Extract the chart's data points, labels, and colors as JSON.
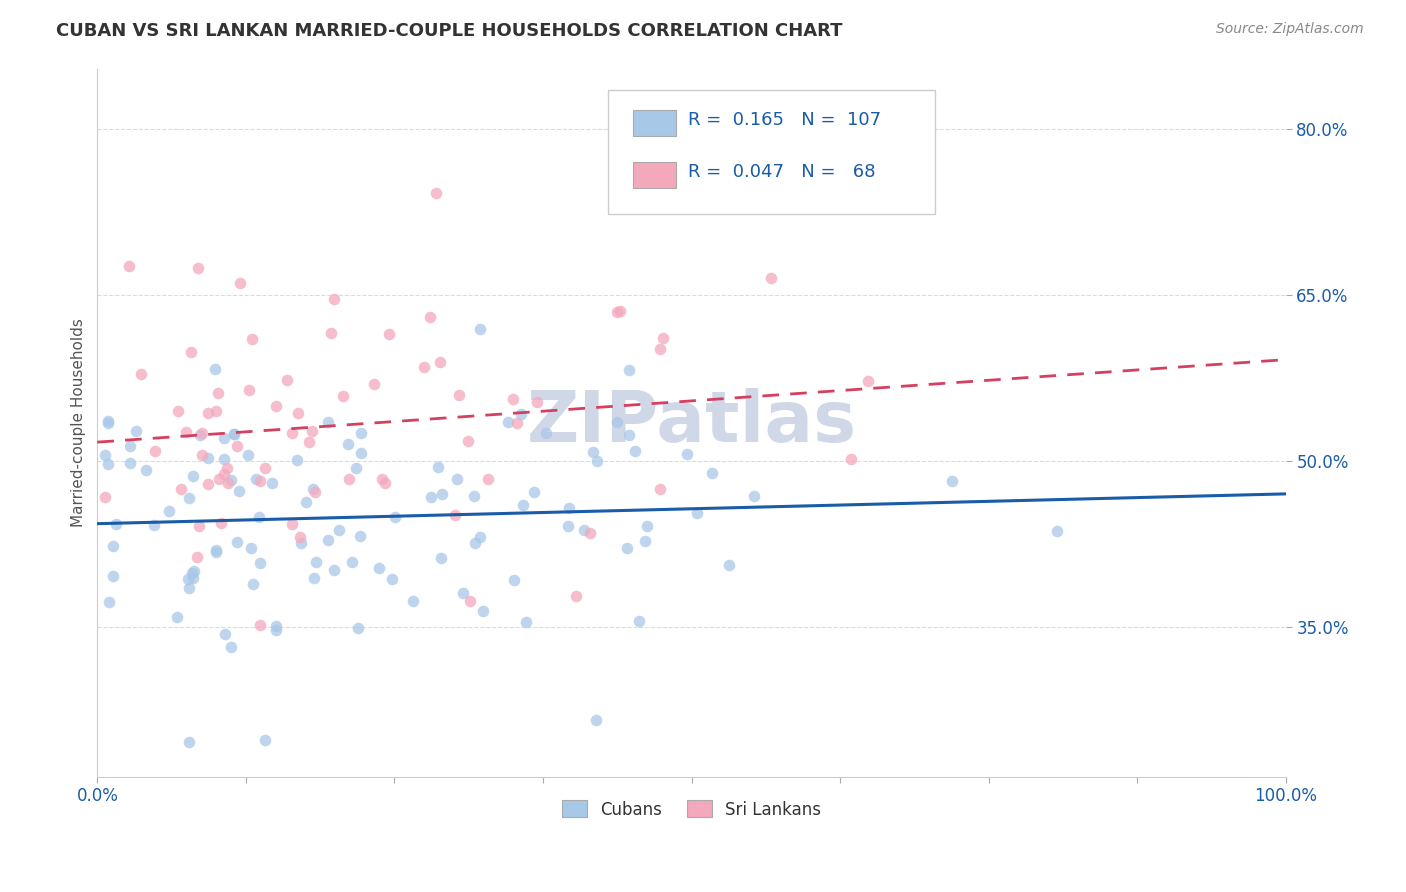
{
  "title": "CUBAN VS SRI LANKAN MARRIED-COUPLE HOUSEHOLDS CORRELATION CHART",
  "source": "Source: ZipAtlas.com",
  "ylabel": "Married-couple Households",
  "yticks_labels": [
    "35.0%",
    "50.0%",
    "65.0%",
    "80.0%"
  ],
  "yticks_vals": [
    0.35,
    0.5,
    0.65,
    0.8
  ],
  "xticks_labels": [
    "0.0%",
    "100.0%"
  ],
  "xticks_vals": [
    0.0,
    1.0
  ],
  "xmin": 0.0,
  "xmax": 1.0,
  "ymin": 0.215,
  "ymax": 0.855,
  "cubans_color": "#a8c8e8",
  "srilankans_color": "#f4a8bc",
  "cubans_line_color": "#1a5ca8",
  "srilankans_line_color": "#d44060",
  "text_color": "#1a5ca8",
  "title_color": "#333333",
  "grid_color": "#cccccc",
  "background_color": "#ffffff",
  "R_cubans": 0.165,
  "N_cubans": 107,
  "R_srilankans": 0.047,
  "N_srilankans": 68,
  "legend_R_color": "#1a5ca8",
  "legend_N_color": "#1a5ca8",
  "watermark": "ZIPatlas",
  "watermark_color": "#d0d8e8",
  "scatter_size": 70,
  "scatter_alpha": 0.75
}
